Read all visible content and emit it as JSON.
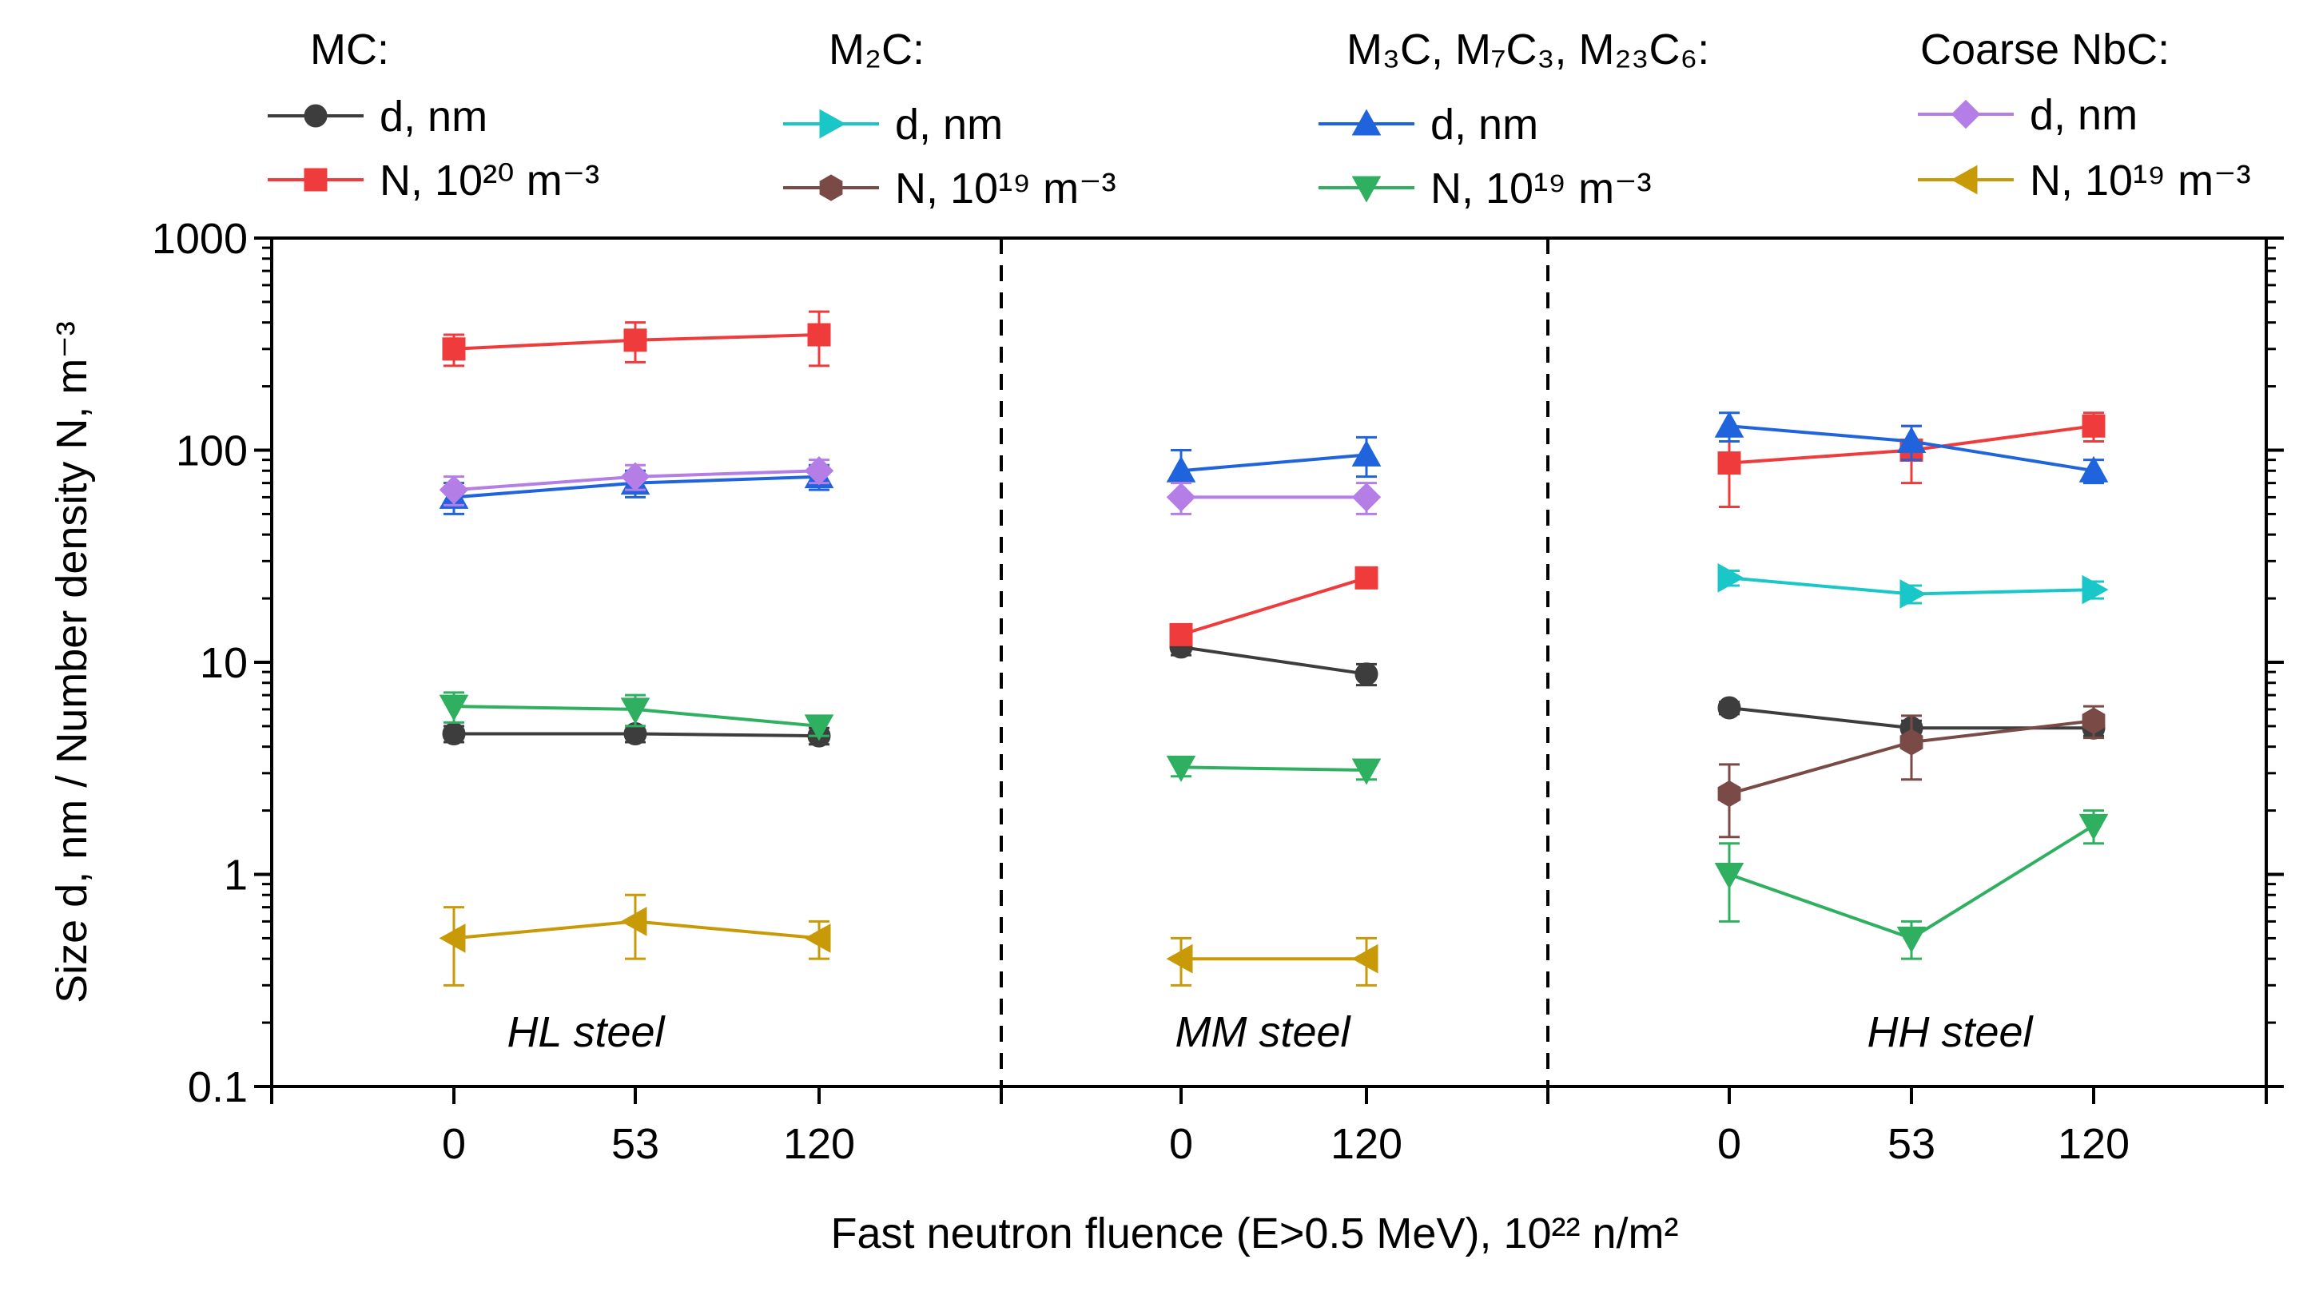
{
  "chart_data": {
    "type": "line",
    "yscale": "log",
    "ylim": [
      0.1,
      1000
    ],
    "ylabel": "Size d, nm / Number density N, m⁻³",
    "xlabel": "Fast neutron fluence (E>0.5 MeV), 10²² n/m²",
    "y_ticks": [
      "0.1",
      "1",
      "10",
      "100",
      "1000"
    ],
    "panels": [
      {
        "label": "HL steel",
        "x": [
          "0",
          "53",
          "120"
        ]
      },
      {
        "label": "MM steel",
        "x": [
          "0",
          "120"
        ]
      },
      {
        "label": "HH steel",
        "x": [
          "0",
          "53",
          "120"
        ]
      }
    ],
    "legend_groups": [
      {
        "title": "MC:",
        "entries": [
          {
            "series_id": "mc_d",
            "text": "d, nm"
          },
          {
            "series_id": "mc_n",
            "text": "N, 10²⁰ m⁻³"
          }
        ]
      },
      {
        "title": "M₂C:",
        "entries": [
          {
            "series_id": "m2c_d",
            "text": "d, nm"
          },
          {
            "series_id": "m2c_n",
            "text": "N, 10¹⁹ m⁻³"
          }
        ]
      },
      {
        "title": "M₃C, M₇C₃, M₂₃C₆:",
        "entries": [
          {
            "series_id": "m3c_d",
            "text": "d, nm"
          },
          {
            "series_id": "m3c_n",
            "text": "N, 10¹⁹ m⁻³"
          }
        ]
      },
      {
        "title": "Coarse NbC:",
        "entries": [
          {
            "series_id": "nbc_d",
            "text": "d, nm"
          },
          {
            "series_id": "nbc_n",
            "text": "N, 10¹⁹ m⁻³"
          }
        ]
      }
    ],
    "series": [
      {
        "id": "mc_d",
        "name": "MC d, nm",
        "color": "#3d3d3d",
        "marker": "circle",
        "panels": [
          {
            "values": [
              4.6,
              4.6,
              4.5
            ],
            "errors": [
              0.4,
              0.4,
              0.4
            ]
          },
          {
            "values": [
              11.8,
              8.8
            ],
            "errors": [
              1.0,
              1.0
            ]
          },
          {
            "values": [
              6.1,
              4.9,
              4.9
            ],
            "errors": [
              0.4,
              0.4,
              0.4
            ]
          }
        ]
      },
      {
        "id": "mc_n",
        "name": "MC N, 10^20 m^-3",
        "color": "#ef3b3b",
        "marker": "square",
        "panels": [
          {
            "values": [
              300,
              330,
              350
            ],
            "errors": [
              50,
              70,
              100
            ]
          },
          {
            "values": [
              13.5,
              25
            ],
            "errors": [
              1.2,
              2.0
            ]
          },
          {
            "values": [
              87,
              100,
              130
            ],
            "errors": [
              33,
              30,
              20
            ]
          }
        ]
      },
      {
        "id": "m2c_d",
        "name": "M2C d, nm",
        "color": "#19c6c8",
        "marker": "triangle-right",
        "panels": [
          {
            "values": [
              null,
              null,
              null
            ],
            "errors": [
              0,
              0,
              0
            ]
          },
          {
            "values": [
              null,
              null
            ],
            "errors": [
              0,
              0
            ]
          },
          {
            "values": [
              25,
              21,
              22
            ],
            "errors": [
              2,
              2,
              2
            ]
          }
        ]
      },
      {
        "id": "m2c_n",
        "name": "M2C N, 10^19 m^-3",
        "color": "#7a4a46",
        "marker": "hexagon",
        "panels": [
          {
            "values": [
              null,
              null,
              null
            ],
            "errors": [
              0,
              0,
              0
            ]
          },
          {
            "values": [
              null,
              null
            ],
            "errors": [
              0,
              0
            ]
          },
          {
            "values": [
              2.4,
              4.2,
              5.3
            ],
            "errors": [
              0.9,
              1.4,
              0.9
            ]
          }
        ]
      },
      {
        "id": "m3c_d",
        "name": "M3C/M7C3/M23C6 d, nm",
        "color": "#1f63dd",
        "marker": "triangle-up",
        "panels": [
          {
            "values": [
              60,
              70,
              75
            ],
            "errors": [
              10,
              10,
              10
            ]
          },
          {
            "values": [
              80,
              95
            ],
            "errors": [
              20,
              20
            ]
          },
          {
            "values": [
              130,
              110,
              80
            ],
            "errors": [
              20,
              20,
              10
            ]
          }
        ]
      },
      {
        "id": "m3c_n",
        "name": "M3C/M7C3/M23C6 N, 10^19 m^-3",
        "color": "#2fb060",
        "marker": "triangle-down",
        "panels": [
          {
            "values": [
              6.2,
              6.0,
              5.0
            ],
            "errors": [
              1.0,
              1.0,
              0.5
            ]
          },
          {
            "values": [
              3.2,
              3.1
            ],
            "errors": [
              0.3,
              0.3
            ]
          },
          {
            "values": [
              1.0,
              0.5,
              1.7
            ],
            "errors": [
              0.4,
              0.1,
              0.3
            ]
          }
        ]
      },
      {
        "id": "nbc_d",
        "name": "Coarse NbC d, nm",
        "color": "#b57ee6",
        "marker": "diamond",
        "panels": [
          {
            "values": [
              65,
              75,
              80
            ],
            "errors": [
              10,
              10,
              10
            ]
          },
          {
            "values": [
              60,
              60
            ],
            "errors": [
              10,
              10
            ]
          },
          {
            "values": [
              null,
              null,
              null
            ],
            "errors": [
              0,
              0,
              0
            ]
          }
        ]
      },
      {
        "id": "nbc_n",
        "name": "Coarse NbC N, 10^19 m^-3",
        "color": "#c99a07",
        "marker": "triangle-left",
        "panels": [
          {
            "values": [
              0.5,
              0.6,
              0.5
            ],
            "errors": [
              0.2,
              0.2,
              0.1
            ]
          },
          {
            "values": [
              0.4,
              0.4
            ],
            "errors": [
              0.1,
              0.1
            ]
          },
          {
            "values": [
              null,
              null,
              null
            ],
            "errors": [
              0,
              0,
              0
            ]
          }
        ]
      }
    ]
  }
}
